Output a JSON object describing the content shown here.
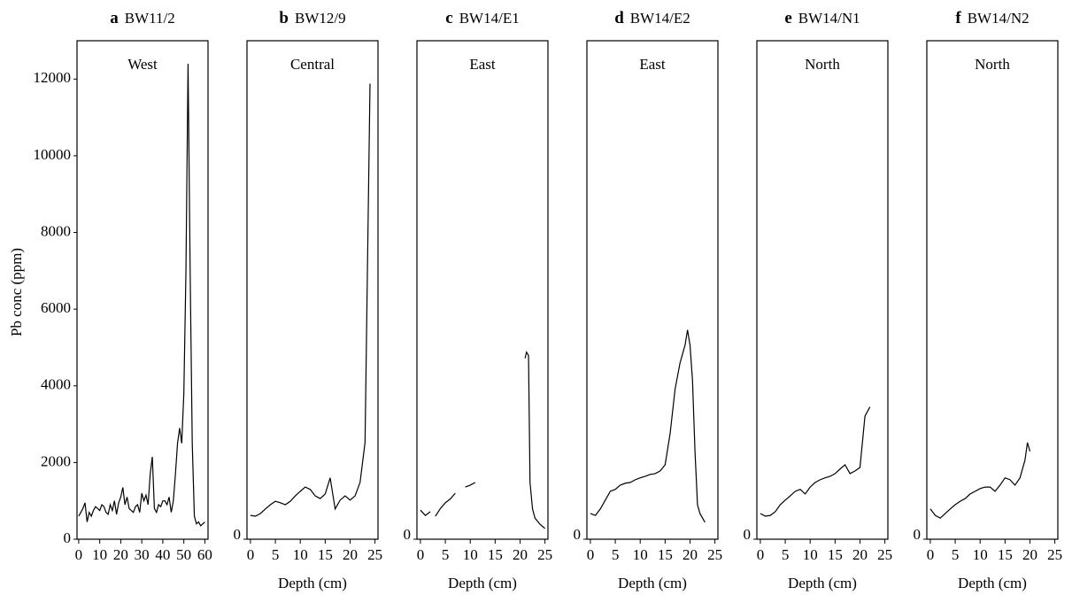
{
  "chart_data": [
    {
      "type": "line",
      "panel": "a",
      "title": "BW11/2",
      "region": "West",
      "ylabel": "Pb conc (ppm)",
      "xlim": [
        -0.8,
        61.5
      ],
      "xticks": [
        0,
        10,
        20,
        30,
        40,
        50,
        60
      ],
      "ylim": [
        0,
        13000
      ],
      "yticks": [
        0,
        2000,
        4000,
        6000,
        8000,
        10000,
        12000
      ],
      "x": [
        0,
        1,
        2,
        3,
        4,
        5,
        6,
        7,
        8,
        9,
        10,
        11,
        12,
        13,
        14,
        15,
        16,
        17,
        18,
        19,
        20,
        21,
        22,
        23,
        24,
        25,
        26,
        27,
        28,
        29,
        30,
        31,
        32,
        33,
        34,
        35,
        36,
        37,
        38,
        39,
        40,
        41,
        42,
        43,
        44,
        45,
        46,
        47,
        48,
        49,
        50,
        51,
        52,
        53,
        54,
        55,
        56,
        57,
        58,
        59,
        60
      ],
      "series": [
        {
          "color": "#000000",
          "values": [
            600,
            700,
            800,
            950,
            450,
            700,
            600,
            750,
            850,
            800,
            750,
            900,
            850,
            700,
            650,
            900,
            750,
            1000,
            650,
            950,
            1100,
            1350,
            900,
            1100,
            800,
            750,
            700,
            850,
            900,
            700,
            1200,
            1000,
            1150,
            900,
            1700,
            2150,
            800,
            700,
            900,
            850,
            1000,
            1000,
            900,
            1100,
            700,
            1000,
            1700,
            2500,
            2900,
            2500,
            3800,
            7000,
            12400,
            7000,
            2500,
            600,
            400,
            450,
            350,
            400,
            450
          ]
        }
      ]
    },
    {
      "type": "line",
      "panel": "b",
      "title": "BW12/9",
      "region": "Central",
      "xlabel": "Depth (cm)",
      "xlim": [
        -0.7,
        25.6
      ],
      "xticks": [
        0,
        5,
        10,
        15,
        20,
        25
      ],
      "ylim": [
        0,
        13000
      ],
      "yticks": [
        0
      ],
      "x": [
        0,
        1,
        2,
        3,
        4,
        5,
        6,
        7,
        8,
        9,
        10,
        11,
        12,
        13,
        14,
        15,
        16,
        17,
        18,
        19,
        20,
        21,
        22,
        23,
        24
      ],
      "series": [
        {
          "color": "#000000",
          "values": [
            620,
            600,
            670,
            790,
            900,
            990,
            950,
            900,
            990,
            1130,
            1250,
            1360,
            1300,
            1130,
            1060,
            1180,
            1600,
            790,
            1020,
            1130,
            1020,
            1130,
            1480,
            2520,
            11880
          ]
        }
      ]
    },
    {
      "type": "line",
      "panel": "c",
      "title": "BW14/E1",
      "region": "East",
      "xlabel": "Depth (cm)",
      "xlim": [
        -0.7,
        25.6
      ],
      "xticks": [
        0,
        5,
        10,
        15,
        20,
        25
      ],
      "ylim": [
        0,
        13000
      ],
      "yticks": [
        0
      ],
      "x": [
        0,
        1,
        2,
        2.5,
        3,
        4,
        5,
        6,
        7,
        8,
        9,
        10,
        11,
        15,
        21,
        21.3,
        21.7,
        22,
        22.5,
        23,
        24,
        25
      ],
      "series": [
        {
          "color": "#000000",
          "values": [
            760,
            620,
            720,
            null,
            600,
            800,
            950,
            1050,
            1200,
            null,
            1360,
            1410,
            1480,
            null,
            4720,
            4880,
            4790,
            1480,
            790,
            550,
            390,
            280
          ]
        }
      ]
    },
    {
      "type": "line",
      "panel": "d",
      "title": "BW14/E2",
      "region": "East",
      "xlabel": "Depth (cm)",
      "xlim": [
        -0.7,
        25.6
      ],
      "xticks": [
        0,
        5,
        10,
        15,
        20,
        25
      ],
      "ylim": [
        0,
        13000
      ],
      "yticks": [
        0
      ],
      "x": [
        0,
        1,
        2,
        3,
        4,
        5,
        6,
        7,
        8,
        9,
        10,
        11,
        12,
        13,
        14,
        15,
        16,
        17,
        18,
        19,
        19.5,
        20,
        20.5,
        21,
        21.5,
        22,
        23
      ],
      "series": [
        {
          "color": "#000000",
          "values": [
            670,
            620,
            790,
            1020,
            1250,
            1300,
            1410,
            1460,
            1480,
            1550,
            1600,
            1640,
            1690,
            1710,
            1780,
            1940,
            2750,
            3910,
            4600,
            5060,
            5460,
            5060,
            4140,
            2290,
            900,
            670,
            440
          ]
        }
      ]
    },
    {
      "type": "line",
      "panel": "e",
      "title": "BW14/N1",
      "region": "North",
      "xlabel": "Depth (cm)",
      "xlim": [
        -0.7,
        25.6
      ],
      "xticks": [
        0,
        5,
        10,
        15,
        20,
        25
      ],
      "ylim": [
        0,
        13000
      ],
      "yticks": [
        0
      ],
      "x": [
        0,
        1,
        2,
        3,
        4,
        5,
        6,
        7,
        8,
        9,
        10,
        11,
        12,
        13,
        14,
        15,
        16,
        17,
        18,
        19,
        20,
        21,
        22
      ],
      "series": [
        {
          "color": "#000000",
          "values": [
            670,
            600,
            620,
            720,
            900,
            1020,
            1130,
            1250,
            1300,
            1180,
            1360,
            1480,
            1550,
            1600,
            1640,
            1710,
            1830,
            1940,
            1710,
            1780,
            1870,
            3210,
            3450
          ]
        }
      ]
    },
    {
      "type": "line",
      "panel": "f",
      "title": "BW14/N2",
      "region": "North",
      "xlabel": "Depth (cm)",
      "xlim": [
        -0.7,
        25.6
      ],
      "xticks": [
        0,
        5,
        10,
        15,
        20,
        25
      ],
      "ylim": [
        0,
        13000
      ],
      "yticks": [
        0
      ],
      "x": [
        0,
        1,
        2,
        3,
        4,
        5,
        6,
        7,
        8,
        9,
        10,
        11,
        12,
        13,
        14,
        15,
        16,
        17,
        18,
        19,
        19.5,
        20
      ],
      "series": [
        {
          "color": "#000000",
          "values": [
            790,
            620,
            550,
            670,
            790,
            900,
            990,
            1060,
            1180,
            1250,
            1320,
            1360,
            1360,
            1250,
            1410,
            1600,
            1550,
            1410,
            1600,
            2060,
            2520,
            2290
          ]
        }
      ]
    }
  ]
}
